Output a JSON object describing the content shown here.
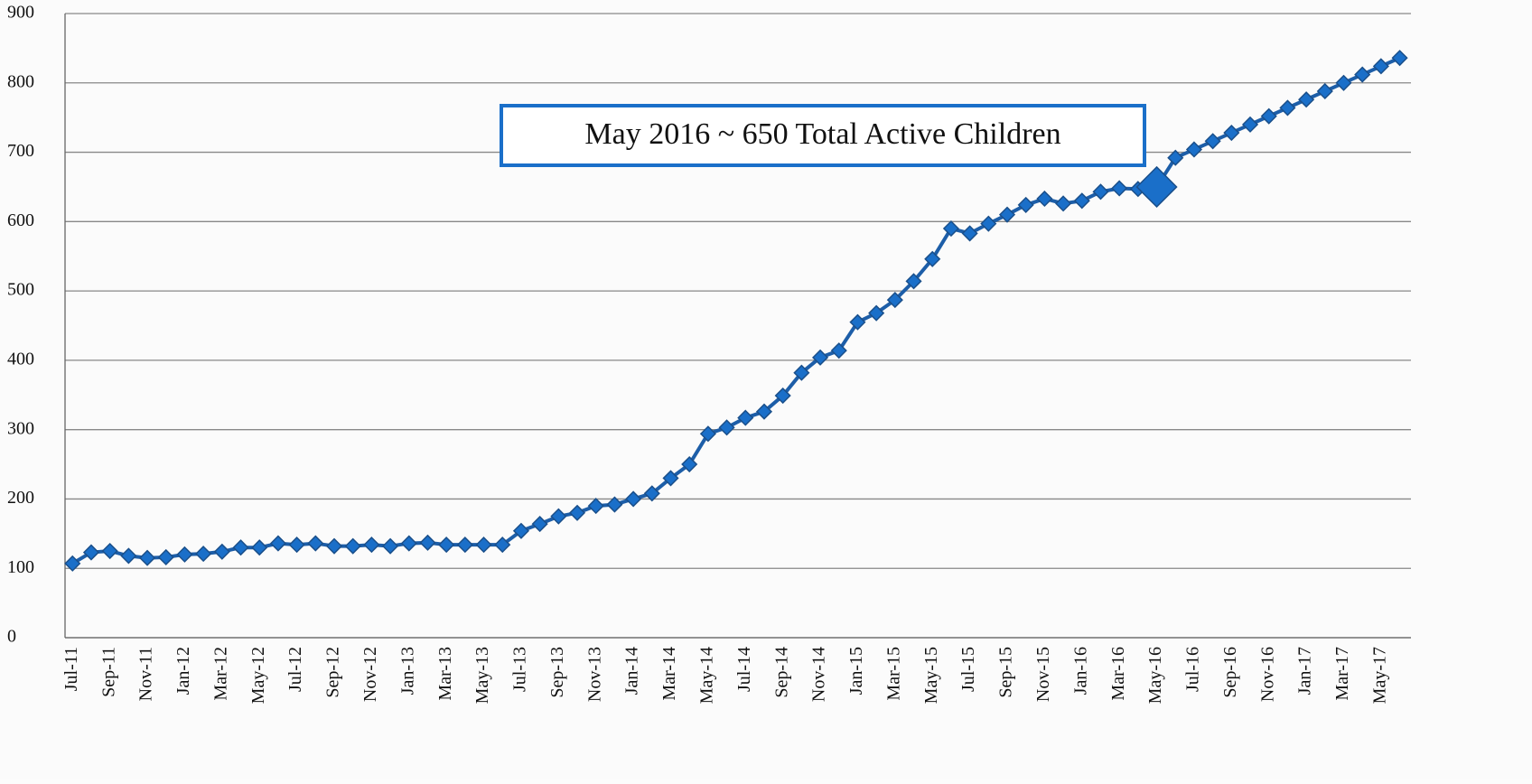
{
  "chart_data": {
    "type": "line",
    "annotation": "May 2016 ~ 650 Total Active Children",
    "highlight": "May-16",
    "color": "#1a6fc9",
    "categories": [
      "Jul-11",
      null,
      "Sep-11",
      null,
      "Nov-11",
      null,
      "Jan-12",
      null,
      "Mar-12",
      null,
      "May-12",
      null,
      "Jul-12",
      null,
      "Sep-12",
      null,
      "Nov-12",
      null,
      "Jan-13",
      null,
      "Mar-13",
      null,
      "May-13",
      null,
      "Jul-13",
      null,
      "Sep-13",
      null,
      "Nov-13",
      null,
      "Jan-14",
      null,
      "Mar-14",
      null,
      "May-14",
      null,
      "Jul-14",
      null,
      "Sep-14",
      null,
      "Nov-14",
      null,
      "Jan-15",
      null,
      "Mar-15",
      null,
      "May-15",
      null,
      "Jul-15",
      null,
      "Sep-15",
      null,
      "Nov-15",
      null,
      "Jan-16",
      null,
      "Mar-16",
      null,
      "May-16",
      null,
      "Jul-16",
      null,
      "Sep-16",
      null,
      "Nov-16",
      null,
      "Jan-17",
      null,
      "Mar-17",
      null,
      "May-17",
      null
    ],
    "values": [
      107,
      123,
      125,
      118,
      115,
      116,
      120,
      121,
      124,
      130,
      130,
      136,
      134,
      136,
      132,
      132,
      134,
      132,
      136,
      137,
      134,
      134,
      134,
      134,
      154,
      164,
      175,
      180,
      190,
      192,
      200,
      208,
      230,
      250,
      294,
      303,
      317,
      326,
      349,
      382,
      404,
      414,
      455,
      468,
      487,
      514,
      546,
      590,
      583,
      597,
      610,
      624,
      633,
      626,
      630,
      643,
      648,
      647,
      650,
      692,
      704,
      716,
      728,
      740,
      752,
      764,
      776,
      788,
      800,
      812,
      824,
      836
    ],
    "ylim": [
      0,
      900
    ],
    "yticks": [
      0,
      100,
      200,
      300,
      400,
      500,
      600,
      700,
      800,
      900
    ],
    "grid": true
  }
}
